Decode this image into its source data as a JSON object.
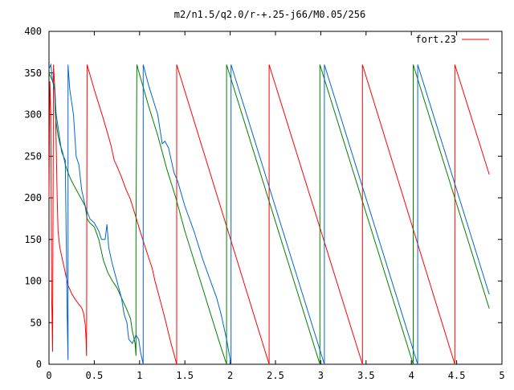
{
  "chart_data": {
    "type": "line",
    "title": "m2/n1.5/q2.0/r-+.25-j66/M0.05/256",
    "xlabel": "",
    "ylabel": "",
    "xlim": [
      0,
      5
    ],
    "ylim": [
      0,
      400
    ],
    "x_ticks": [
      0,
      0.5,
      1,
      1.5,
      2,
      2.5,
      3,
      3.5,
      4,
      4.5,
      5
    ],
    "x_tick_labels": [
      "0",
      "0.5",
      "1",
      "1.5",
      "2",
      "2.5",
      "3",
      "3.5",
      "4",
      "4.5",
      "5"
    ],
    "y_ticks": [
      0,
      50,
      100,
      150,
      200,
      250,
      300,
      350,
      400
    ],
    "y_tick_labels": [
      "0",
      "50",
      "100",
      "150",
      "200",
      "250",
      "300",
      "350",
      "400"
    ],
    "grid": false,
    "legend_position": "top-right",
    "series": [
      {
        "name": "fort.23",
        "color": "#ff0000",
        "in_legend": true,
        "points": [
          [
            0.0,
            200
          ],
          [
            0.01,
            340
          ],
          [
            0.02,
            300
          ],
          [
            0.03,
            80
          ],
          [
            0.04,
            15
          ],
          [
            0.05,
            360
          ],
          [
            0.07,
            320
          ],
          [
            0.09,
            200
          ],
          [
            0.1,
            160
          ],
          [
            0.12,
            140
          ],
          [
            0.15,
            125
          ],
          [
            0.18,
            110
          ],
          [
            0.21,
            95
          ],
          [
            0.25,
            85
          ],
          [
            0.29,
            78
          ],
          [
            0.33,
            72
          ],
          [
            0.36,
            68
          ],
          [
            0.38,
            62
          ],
          [
            0.4,
            48
          ],
          [
            0.41,
            30
          ],
          [
            0.415,
            10
          ],
          [
            0.42,
            360
          ],
          [
            0.5,
            330
          ],
          [
            0.6,
            295
          ],
          [
            0.68,
            265
          ],
          [
            0.72,
            245
          ],
          [
            0.75,
            238
          ],
          [
            0.8,
            225
          ],
          [
            0.85,
            210
          ],
          [
            0.9,
            198
          ],
          [
            0.95,
            180
          ],
          [
            1.0,
            162
          ],
          [
            1.05,
            145
          ],
          [
            1.1,
            128
          ],
          [
            1.14,
            115
          ],
          [
            1.17,
            100
          ],
          [
            1.22,
            80
          ],
          [
            1.28,
            55
          ],
          [
            1.34,
            28
          ],
          [
            1.41,
            0
          ],
          [
            1.41,
            360
          ],
          [
            2.43,
            0
          ],
          [
            2.43,
            360
          ],
          [
            3.46,
            0
          ],
          [
            3.46,
            360
          ],
          [
            4.48,
            0
          ],
          [
            4.48,
            360
          ],
          [
            4.86,
            228
          ]
        ]
      },
      {
        "name": "",
        "color": "#008000",
        "in_legend": false,
        "points": [
          [
            0.0,
            350
          ],
          [
            0.02,
            345
          ],
          [
            0.04,
            340
          ],
          [
            0.06,
            335
          ],
          [
            0.07,
            300
          ],
          [
            0.08,
            290
          ],
          [
            0.1,
            275
          ],
          [
            0.12,
            265
          ],
          [
            0.15,
            255
          ],
          [
            0.18,
            240
          ],
          [
            0.21,
            230
          ],
          [
            0.25,
            220
          ],
          [
            0.3,
            210
          ],
          [
            0.35,
            200
          ],
          [
            0.4,
            190
          ],
          [
            0.42,
            175
          ],
          [
            0.45,
            170
          ],
          [
            0.5,
            165
          ],
          [
            0.55,
            150
          ],
          [
            0.6,
            125
          ],
          [
            0.65,
            110
          ],
          [
            0.7,
            100
          ],
          [
            0.75,
            92
          ],
          [
            0.8,
            80
          ],
          [
            0.85,
            68
          ],
          [
            0.9,
            55
          ],
          [
            0.92,
            40
          ],
          [
            0.95,
            25
          ],
          [
            0.96,
            10
          ],
          [
            0.96,
            150
          ],
          [
            0.97,
            360
          ],
          [
            1.0,
            348
          ],
          [
            1.1,
            310
          ],
          [
            1.2,
            275
          ],
          [
            1.3,
            235
          ],
          [
            1.4,
            200
          ],
          [
            1.5,
            160
          ],
          [
            1.6,
            125
          ],
          [
            1.7,
            90
          ],
          [
            1.8,
            55
          ],
          [
            1.9,
            20
          ],
          [
            1.96,
            0
          ],
          [
            1.96,
            360
          ],
          [
            2.99,
            0
          ],
          [
            2.99,
            360
          ],
          [
            4.02,
            0
          ],
          [
            4.02,
            360
          ],
          [
            4.86,
            67
          ]
        ]
      },
      {
        "name": "",
        "color": "#0066cc",
        "in_legend": false,
        "points": [
          [
            0.0,
            355
          ],
          [
            0.02,
            360
          ],
          [
            0.04,
            340
          ],
          [
            0.06,
            330
          ],
          [
            0.08,
            300
          ],
          [
            0.1,
            285
          ],
          [
            0.12,
            270
          ],
          [
            0.14,
            255
          ],
          [
            0.16,
            250
          ],
          [
            0.18,
            245
          ],
          [
            0.2,
            60
          ],
          [
            0.21,
            5
          ],
          [
            0.21,
            360
          ],
          [
            0.23,
            330
          ],
          [
            0.27,
            300
          ],
          [
            0.3,
            250
          ],
          [
            0.33,
            240
          ],
          [
            0.36,
            210
          ],
          [
            0.4,
            190
          ],
          [
            0.45,
            175
          ],
          [
            0.5,
            170
          ],
          [
            0.55,
            160
          ],
          [
            0.58,
            150
          ],
          [
            0.62,
            150
          ],
          [
            0.64,
            168
          ],
          [
            0.66,
            140
          ],
          [
            0.7,
            120
          ],
          [
            0.75,
            100
          ],
          [
            0.8,
            80
          ],
          [
            0.83,
            60
          ],
          [
            0.86,
            50
          ],
          [
            0.88,
            30
          ],
          [
            0.92,
            25
          ],
          [
            0.96,
            35
          ],
          [
            0.99,
            30
          ],
          [
            1.01,
            15
          ],
          [
            1.04,
            0
          ],
          [
            1.04,
            360
          ],
          [
            1.1,
            335
          ],
          [
            1.2,
            300
          ],
          [
            1.25,
            265
          ],
          [
            1.28,
            268
          ],
          [
            1.32,
            260
          ],
          [
            1.38,
            230
          ],
          [
            1.42,
            220
          ],
          [
            1.5,
            190
          ],
          [
            1.6,
            160
          ],
          [
            1.7,
            125
          ],
          [
            1.8,
            95
          ],
          [
            1.85,
            80
          ],
          [
            1.9,
            60
          ],
          [
            1.96,
            30
          ],
          [
            2.01,
            0
          ],
          [
            2.01,
            360
          ],
          [
            3.04,
            0
          ],
          [
            3.04,
            360
          ],
          [
            4.07,
            0
          ],
          [
            4.07,
            360
          ],
          [
            4.86,
            84
          ]
        ]
      }
    ]
  }
}
